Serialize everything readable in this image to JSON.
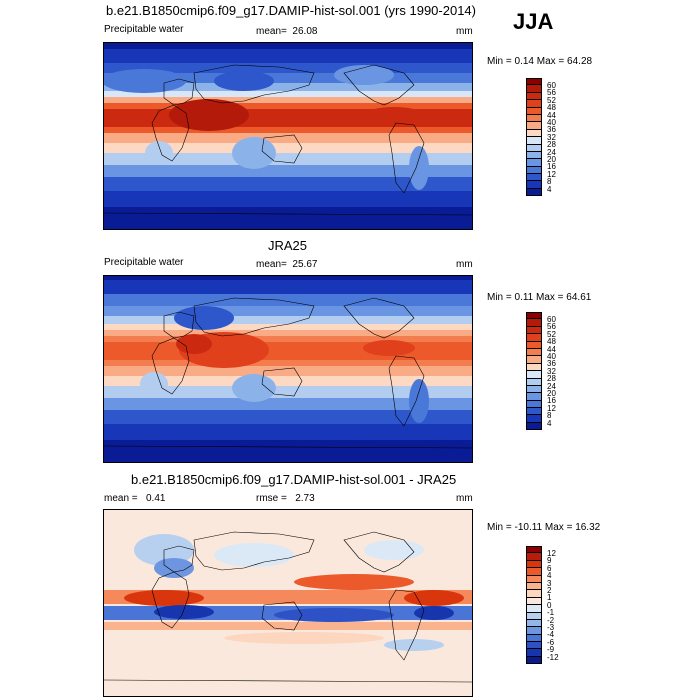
{
  "season": "JJA",
  "panels": [
    {
      "title": "b.e21.B1850cmip6.f09_g17.DAMIP-hist-sol.001 (yrs 1990-2014)",
      "variable": "Precipitable water",
      "stat_label": "mean=",
      "stat_value": "26.08",
      "units": "mm",
      "minmax": "Min =   0.14 Max =  64.28",
      "colorbar_labels": [
        "60",
        "56",
        "52",
        "48",
        "44",
        "40",
        "36",
        "32",
        "28",
        "24",
        "20",
        "16",
        "12",
        "8",
        "4"
      ]
    },
    {
      "title": "JRA25",
      "variable": "Precipitable water",
      "stat_label": "mean=",
      "stat_value": "25.67",
      "units": "mm",
      "minmax": "Min =   0.11 Max =  64.61",
      "colorbar_labels": [
        "60",
        "56",
        "52",
        "48",
        "44",
        "40",
        "36",
        "32",
        "28",
        "24",
        "20",
        "16",
        "12",
        "8",
        "4"
      ]
    },
    {
      "title": "b.e21.B1850cmip6.f09_g17.DAMIP-hist-sol.001 - JRA25",
      "mean_label": "mean =",
      "mean_value": "0.41",
      "rmse_label": "rmse =",
      "rmse_value": "2.73",
      "units": "mm",
      "minmax": "Min = -10.11 Max =  16.32",
      "colorbar_labels": [
        "12",
        "9",
        "6",
        "4",
        "3",
        "2",
        "1",
        "0",
        "-1",
        "-2",
        "-3",
        "-4",
        "-6",
        "-9",
        "-12"
      ]
    }
  ],
  "colors": {
    "abs_scale": [
      "#8b0000",
      "#b31a0a",
      "#cc2a10",
      "#e0401c",
      "#ec5a2c",
      "#f37d4f",
      "#f9ab85",
      "#fdd9c4",
      "#d9e6f7",
      "#b3cdf0",
      "#8cb2ea",
      "#6a95e2",
      "#4a78d8",
      "#2e57cc",
      "#1837b8",
      "#0a1b96"
    ],
    "diff_scale": [
      "#8b0000",
      "#b81c0c",
      "#d9360e",
      "#ec5a2c",
      "#f5895b",
      "#f9b48f",
      "#fcd6bf",
      "#fbe8dc",
      "#dbe9f7",
      "#b8d0ef",
      "#93b5e8",
      "#6e95df",
      "#4a74d6",
      "#2e52c5",
      "#1735ad",
      "#0a1b8e"
    ]
  }
}
